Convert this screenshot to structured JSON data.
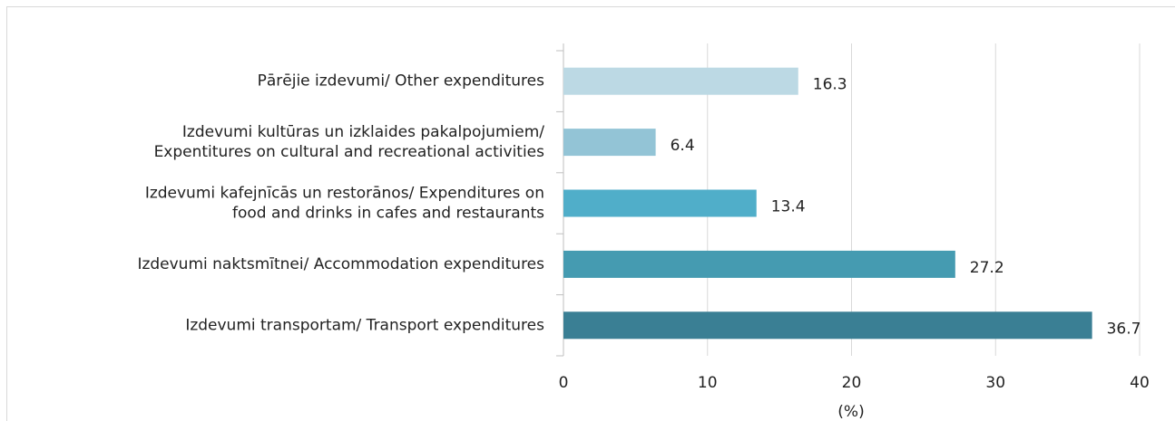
{
  "chart_data": {
    "type": "bar",
    "orientation": "horizontal",
    "categories": [
      [
        "Pārējie izdevumi/ Other expenditures"
      ],
      [
        "Izdevumi kultūras un izklaides pakalpojumiem/",
        "Expentitures on cultural and recreational activities"
      ],
      [
        "Izdevumi kafejnīcās un restorānos/ Expenditures on",
        "food and drinks in cafes and restaurants"
      ],
      [
        "Izdevumi naktsmītnei/ Accommodation expenditures"
      ],
      [
        "Izdevumi transportam/ Transport expenditures"
      ]
    ],
    "values": [
      16.3,
      6.4,
      13.4,
      27.2,
      36.7
    ],
    "colors": [
      "#bcd9e4",
      "#93c4d6",
      "#50aec9",
      "#459bb1",
      "#3a7f94"
    ],
    "xlim": [
      0,
      40
    ],
    "xticks": [
      0,
      10,
      20,
      30,
      40
    ],
    "xlabel": "(%)",
    "grid": true
  }
}
